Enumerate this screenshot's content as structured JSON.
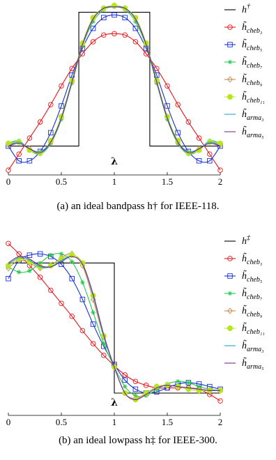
{
  "chart_data": [
    {
      "type": "line",
      "caption": "(a) an ideal bandpass h† for IEEE-118.",
      "xlabel": "λ",
      "ylabel": "",
      "xlim": [
        0,
        2
      ],
      "ylim": [
        -0.2,
        1.05
      ],
      "x_ticks": [
        "0",
        "0.5",
        "1",
        "1.5",
        "2"
      ],
      "legend_position": "right",
      "x": [
        0.0,
        0.1,
        0.2,
        0.3,
        0.4,
        0.5,
        0.6,
        0.7,
        0.8,
        0.9,
        1.0,
        1.1,
        1.2,
        1.3,
        1.4,
        1.5,
        1.6,
        1.7,
        1.8,
        1.9,
        2.0
      ],
      "series": [
        {
          "name": "h†",
          "base": "h",
          "sup": "†",
          "color": "#000000",
          "marker": "none",
          "step": [
            [
              0.0,
              0.0
            ],
            [
              0.665,
              0.0
            ],
            [
              0.665,
              1.0
            ],
            [
              1.335,
              1.0
            ],
            [
              1.335,
              0.0
            ],
            [
              2.0,
              0.0
            ]
          ]
        },
        {
          "name": "h̃ cheb3",
          "base": "h̃",
          "sub": "cheb₃",
          "color": "#e8161c",
          "marker": "circle",
          "values": [
            -0.18,
            -0.06,
            0.06,
            0.18,
            0.31,
            0.45,
            0.58,
            0.69,
            0.78,
            0.83,
            0.84,
            0.83,
            0.78,
            0.69,
            0.58,
            0.45,
            0.31,
            0.18,
            0.06,
            -0.06,
            -0.18
          ]
        },
        {
          "name": "h̃ cheb5",
          "base": "h̃",
          "sub": "cheb₅",
          "color": "#1530d4",
          "marker": "square",
          "values": [
            0.0,
            -0.11,
            -0.11,
            -0.04,
            0.1,
            0.3,
            0.53,
            0.73,
            0.88,
            0.96,
            0.98,
            0.96,
            0.88,
            0.73,
            0.53,
            0.3,
            0.1,
            -0.04,
            -0.11,
            -0.11,
            0.0
          ]
        },
        {
          "name": "h̃ cheb7",
          "base": "h̃",
          "sub": "cheb₇",
          "color": "#22c84a",
          "marker": "star",
          "values": [
            0.02,
            0.04,
            -0.03,
            -0.06,
            0.02,
            0.2,
            0.47,
            0.75,
            0.93,
            1.02,
            1.04,
            1.02,
            0.93,
            0.75,
            0.47,
            0.2,
            0.02,
            -0.06,
            -0.03,
            0.04,
            0.02
          ]
        },
        {
          "name": "h̃ cheb9",
          "base": "h̃",
          "sub": "cheb₉",
          "color": "#c98a4f",
          "marker": "diamond",
          "values": [
            0.01,
            0.03,
            -0.02,
            -0.05,
            0.03,
            0.22,
            0.48,
            0.76,
            0.95,
            1.03,
            1.05,
            1.03,
            0.95,
            0.76,
            0.48,
            0.22,
            0.03,
            -0.05,
            -0.02,
            0.03,
            0.01
          ]
        },
        {
          "name": "h̃ cheb11",
          "base": "h̃",
          "sub": "cheb₁₁",
          "color": "#b7e61e",
          "marker": "circle-filled",
          "values": [
            0.02,
            0.03,
            -0.03,
            -0.05,
            0.04,
            0.22,
            0.49,
            0.77,
            0.96,
            1.03,
            1.05,
            1.03,
            0.96,
            0.77,
            0.49,
            0.22,
            0.04,
            -0.05,
            -0.03,
            0.03,
            0.02
          ]
        },
        {
          "name": "h̃ arma3",
          "base": "h̃",
          "sub": "arma₃",
          "color": "#1aa6cf",
          "marker": "none",
          "values": [
            0.0,
            0.03,
            -0.02,
            -0.04,
            0.03,
            0.21,
            0.48,
            0.76,
            0.95,
            1.03,
            1.04,
            1.03,
            0.95,
            0.76,
            0.48,
            0.21,
            0.03,
            -0.04,
            -0.02,
            0.03,
            0.0
          ]
        },
        {
          "name": "h̃ arma5",
          "base": "h̃",
          "sub": "arma₅",
          "color": "#7b2a8f",
          "marker": "none",
          "values": [
            0.0,
            0.02,
            -0.02,
            -0.05,
            0.03,
            0.21,
            0.48,
            0.76,
            0.95,
            1.03,
            1.04,
            1.03,
            0.95,
            0.76,
            0.48,
            0.21,
            0.03,
            -0.05,
            -0.02,
            0.02,
            0.0
          ]
        }
      ]
    },
    {
      "type": "line",
      "caption": "(b) an ideal lowpass h‡ for IEEE-300.",
      "xlabel": "λ",
      "ylabel": "",
      "xlim": [
        0,
        2
      ],
      "ylim": [
        -0.15,
        1.2
      ],
      "x_ticks": [
        "0",
        "0.5",
        "1",
        "1.5",
        "2"
      ],
      "legend_position": "right",
      "x": [
        0.0,
        0.1,
        0.2,
        0.3,
        0.4,
        0.5,
        0.6,
        0.7,
        0.8,
        0.9,
        1.0,
        1.1,
        1.2,
        1.3,
        1.4,
        1.5,
        1.6,
        1.7,
        1.8,
        1.9,
        2.0
      ],
      "series": [
        {
          "name": "h‡",
          "base": "h",
          "sup": "‡",
          "color": "#000000",
          "marker": "none",
          "step": [
            [
              0.0,
              1.0
            ],
            [
              1.0,
              1.0
            ],
            [
              1.0,
              0.0
            ],
            [
              2.0,
              0.0
            ]
          ]
        },
        {
          "name": "h̃ cheb3",
          "base": "h̃",
          "sub": "cheb₃",
          "color": "#e8161c",
          "marker": "circle",
          "values": [
            1.15,
            1.07,
            0.98,
            0.89,
            0.79,
            0.69,
            0.59,
            0.48,
            0.38,
            0.29,
            0.21,
            0.14,
            0.09,
            0.06,
            0.04,
            0.04,
            0.04,
            0.04,
            0.03,
            -0.01,
            -0.06
          ]
        },
        {
          "name": "h̃ cheb5",
          "base": "h̃",
          "sub": "cheb₅",
          "color": "#1530d4",
          "marker": "square",
          "values": [
            0.88,
            1.02,
            1.06,
            1.07,
            1.05,
            0.99,
            0.88,
            0.72,
            0.53,
            0.36,
            0.22,
            0.1,
            0.03,
            0.0,
            0.01,
            0.04,
            0.07,
            0.08,
            0.07,
            0.05,
            0.03
          ]
        },
        {
          "name": "h̃ cheb7",
          "base": "h̃",
          "sub": "cheb₇",
          "color": "#22c84a",
          "marker": "star",
          "values": [
            0.97,
            0.93,
            0.94,
            1.0,
            1.06,
            1.07,
            1.01,
            0.85,
            0.62,
            0.38,
            0.2,
            0.05,
            -0.02,
            -0.02,
            0.03,
            0.07,
            0.09,
            0.08,
            0.05,
            0.03,
            0.02
          ]
        },
        {
          "name": "h̃ cheb9",
          "base": "h̃",
          "sub": "cheb₉",
          "color": "#c98a4f",
          "marker": "diamond",
          "values": [
            0.96,
            1.02,
            1.0,
            0.96,
            0.98,
            1.04,
            1.07,
            0.98,
            0.72,
            0.43,
            0.2,
            0.0,
            -0.04,
            0.0,
            0.05,
            0.06,
            0.05,
            0.03,
            0.02,
            0.02,
            0.02
          ]
        },
        {
          "name": "h̃ cheb11",
          "base": "h̃",
          "sub": "cheb₁₁",
          "color": "#b7e61e",
          "marker": "circle-filled",
          "values": [
            0.98,
            1.03,
            1.01,
            0.97,
            0.98,
            1.03,
            1.06,
            1.0,
            0.75,
            0.44,
            0.2,
            0.0,
            -0.05,
            0.0,
            0.05,
            0.06,
            0.05,
            0.03,
            0.02,
            0.02,
            0.02
          ]
        },
        {
          "name": "h̃ arma3",
          "base": "h̃",
          "sub": "arma₃",
          "color": "#1aa6cf",
          "marker": "none",
          "values": [
            0.99,
            1.04,
            1.02,
            0.97,
            0.97,
            1.02,
            1.05,
            0.99,
            0.75,
            0.44,
            0.2,
            0.0,
            -0.05,
            -0.01,
            0.04,
            0.06,
            0.05,
            0.04,
            0.03,
            0.02,
            0.02
          ]
        },
        {
          "name": "h̃ arma5",
          "base": "h̃",
          "sub": "arma₅",
          "color": "#7b2a8f",
          "marker": "none",
          "values": [
            1.0,
            1.05,
            1.03,
            0.98,
            0.97,
            1.01,
            1.05,
            0.99,
            0.76,
            0.45,
            0.2,
            0.0,
            -0.05,
            -0.01,
            0.04,
            0.06,
            0.05,
            0.04,
            0.03,
            0.02,
            0.02
          ]
        }
      ]
    }
  ]
}
